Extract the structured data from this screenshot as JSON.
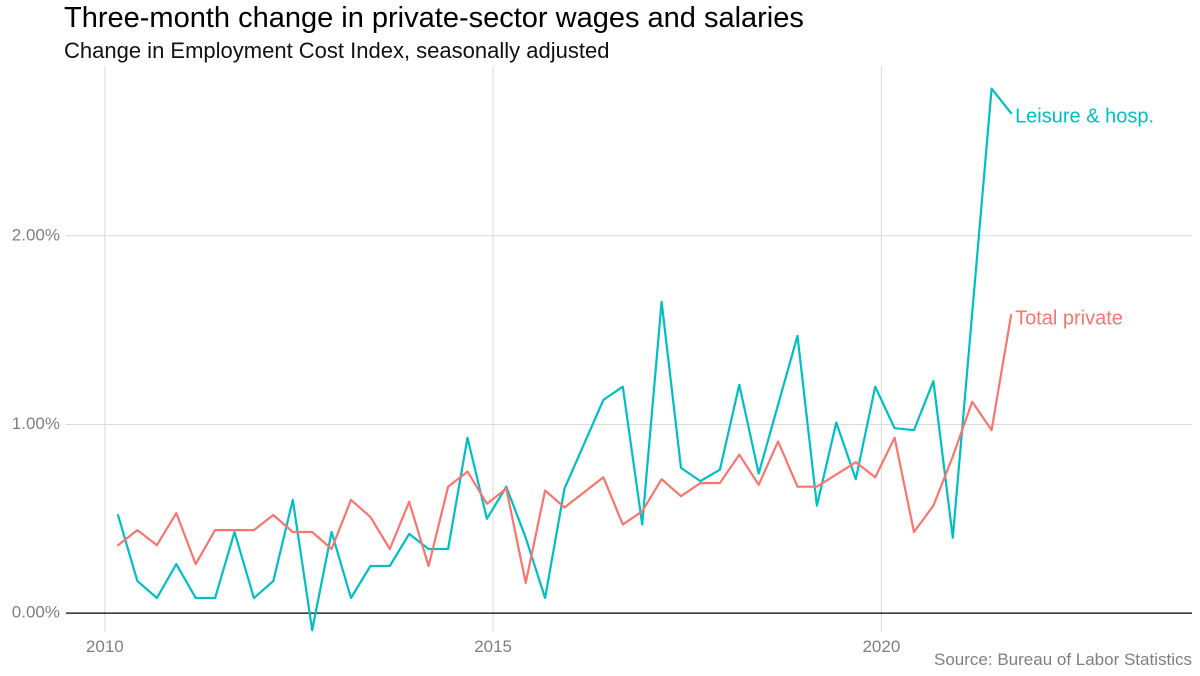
{
  "title": "Three-month change in private-sector wages and salaries",
  "subtitle": "Change in Employment Cost Index, seasonally adjusted",
  "source": "Source: Bureau of Labor Statistics",
  "chart_data": {
    "type": "line",
    "xlim": [
      2009.5,
      2024.0
    ],
    "ylim": [
      -0.1,
      2.9
    ],
    "grid": true,
    "legend": "direct labels at line ends",
    "x_ticks": [
      {
        "value": 2010,
        "label": "2010"
      },
      {
        "value": 2015,
        "label": "2015"
      },
      {
        "value": 2020,
        "label": "2020"
      }
    ],
    "y_ticks": [
      {
        "value": 0,
        "label": "0.00%"
      },
      {
        "value": 1,
        "label": "1.00%"
      },
      {
        "value": 2,
        "label": "2.00%"
      }
    ],
    "x": [
      2010.17,
      2010.42,
      2010.67,
      2010.92,
      2011.17,
      2011.42,
      2011.67,
      2011.92,
      2012.17,
      2012.42,
      2012.67,
      2012.92,
      2013.17,
      2013.42,
      2013.67,
      2013.92,
      2014.17,
      2014.42,
      2014.67,
      2014.92,
      2015.17,
      2015.42,
      2015.67,
      2015.92,
      2016.17,
      2016.42,
      2016.67,
      2016.92,
      2017.17,
      2017.42,
      2017.67,
      2017.92,
      2018.17,
      2018.42,
      2018.67,
      2018.92,
      2019.17,
      2019.42,
      2019.67,
      2019.92,
      2020.17,
      2020.42,
      2020.67,
      2020.92,
      2021.17,
      2021.42,
      2021.67
    ],
    "series": [
      {
        "name": "Leisure & hosp.",
        "color": "#00bfc4",
        "values": [
          0.52,
          0.17,
          0.08,
          0.26,
          0.08,
          0.08,
          0.43,
          0.08,
          0.17,
          0.6,
          -0.09,
          0.43,
          0.08,
          0.25,
          0.25,
          0.42,
          0.34,
          0.34,
          0.93,
          0.5,
          0.67,
          0.4,
          0.08,
          0.66,
          null,
          1.13,
          1.2,
          0.47,
          1.65,
          0.77,
          0.7,
          0.76,
          1.21,
          0.74,
          null,
          1.47,
          0.57,
          1.01,
          0.71,
          1.2,
          0.98,
          0.97,
          1.23,
          0.4,
          null,
          2.78,
          2.65
        ]
      },
      {
        "name": "Total private",
        "color": "#f8766d",
        "values": [
          0.36,
          0.44,
          0.36,
          0.53,
          0.26,
          0.44,
          0.44,
          0.44,
          0.52,
          0.43,
          0.43,
          0.34,
          0.6,
          0.51,
          0.34,
          0.59,
          0.25,
          0.67,
          0.75,
          0.58,
          0.66,
          0.16,
          0.65,
          0.56,
          null,
          0.72,
          0.47,
          0.54,
          0.71,
          0.62,
          0.69,
          0.69,
          0.84,
          0.68,
          0.91,
          0.67,
          0.67,
          null,
          0.8,
          0.72,
          0.93,
          0.43,
          0.57,
          0.83,
          1.12,
          0.97,
          1.58
        ]
      }
    ]
  }
}
